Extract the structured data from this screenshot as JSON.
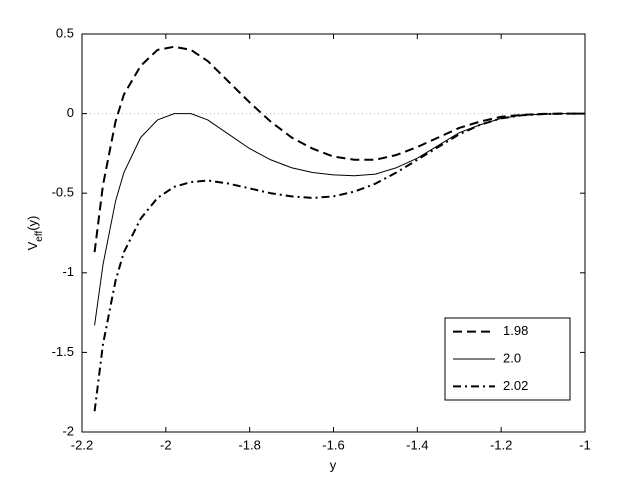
{
  "chart_data": {
    "type": "line",
    "xlabel": "y",
    "ylabel": {
      "main": "V",
      "sub": "eff",
      "tail": "(y)"
    },
    "x": [
      -2.17,
      -2.15,
      -2.12,
      -2.1,
      -2.06,
      -2.02,
      -1.98,
      -1.94,
      -1.9,
      -1.85,
      -1.8,
      -1.75,
      -1.7,
      -1.65,
      -1.6,
      -1.55,
      -1.5,
      -1.45,
      -1.4,
      -1.35,
      -1.3,
      -1.25,
      -1.2,
      -1.15,
      -1.1,
      -1.05,
      -1
    ],
    "series": [
      {
        "name": "1.98",
        "color": "#000000",
        "linestyle": "dashed",
        "values": [
          -0.87,
          -0.45,
          -0.05,
          0.12,
          0.3,
          0.4,
          0.42,
          0.4,
          0.33,
          0.2,
          0.07,
          -0.05,
          -0.15,
          -0.22,
          -0.27,
          -0.29,
          -0.29,
          -0.26,
          -0.21,
          -0.15,
          -0.09,
          -0.05,
          -0.02,
          -0.008,
          -0.002,
          0,
          0
        ]
      },
      {
        "name": "2.0",
        "color": "#000000",
        "linestyle": "solid",
        "values": [
          -1.33,
          -0.95,
          -0.55,
          -0.37,
          -0.15,
          -0.04,
          0.0,
          0.0,
          -0.04,
          -0.13,
          -0.22,
          -0.29,
          -0.34,
          -0.37,
          -0.385,
          -0.39,
          -0.38,
          -0.34,
          -0.28,
          -0.2,
          -0.12,
          -0.07,
          -0.03,
          -0.01,
          -0.003,
          0,
          0
        ]
      },
      {
        "name": "2.02",
        "color": "#000000",
        "linestyle": "dashdot",
        "values": [
          -1.87,
          -1.45,
          -1.05,
          -0.87,
          -0.66,
          -0.53,
          -0.46,
          -0.43,
          -0.42,
          -0.44,
          -0.47,
          -0.5,
          -0.52,
          -0.53,
          -0.52,
          -0.49,
          -0.44,
          -0.37,
          -0.29,
          -0.21,
          -0.13,
          -0.07,
          -0.03,
          -0.01,
          -0.003,
          0,
          0
        ]
      }
    ],
    "xlim": [
      -2.2,
      -1
    ],
    "xticks": [
      -2.2,
      -2,
      -1.8,
      -1.6,
      -1.4,
      -1.2,
      -1
    ],
    "ylim": [
      -2,
      0.5
    ],
    "yticks": [
      -2,
      -1.5,
      -1,
      -0.5,
      0,
      0.5
    ],
    "hline": 0,
    "grid": false,
    "legend": "lower right"
  }
}
